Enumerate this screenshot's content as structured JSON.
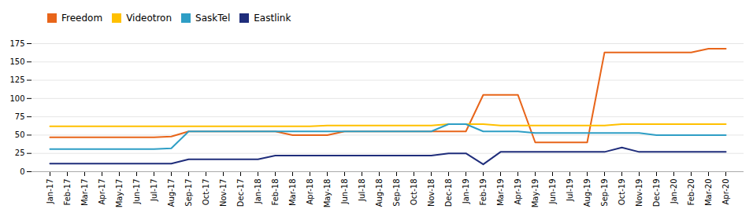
{
  "chart_data": {
    "type": "line",
    "categories": [
      "Jan-17",
      "Feb-17",
      "Mar-17",
      "Apr-17",
      "May-17",
      "Jun-17",
      "Jul-17",
      "Aug-17",
      "Sep-17",
      "Oct-17",
      "Nov-17",
      "Dec-17",
      "Jan-18",
      "Feb-18",
      "Mar-18",
      "Apr-18",
      "May-18",
      "Jun-18",
      "Jul-18",
      "Aug-18",
      "Sep-18",
      "Oct-18",
      "Nov-18",
      "Dec-18",
      "Jan-19",
      "Feb-19",
      "Mar-19",
      "Apr-19",
      "May-19",
      "Jun-19",
      "Jul-19",
      "Aug-19",
      "Sep-19",
      "Oct-19",
      "Nov-19",
      "Dec-19",
      "Jan-20",
      "Feb-20",
      "Mar-20",
      "Apr-20"
    ],
    "series": [
      {
        "name": "Freedom",
        "color": "#E8651A",
        "values": [
          47,
          47,
          47,
          47,
          47,
          47,
          47,
          48,
          55,
          55,
          55,
          55,
          55,
          55,
          50,
          50,
          50,
          55,
          55,
          55,
          55,
          55,
          55,
          55,
          55,
          105,
          105,
          105,
          40,
          40,
          40,
          40,
          163,
          163,
          163,
          163,
          163,
          163,
          168,
          168
        ]
      },
      {
        "name": "Videotron",
        "color": "#FFC000",
        "values": [
          62,
          62,
          62,
          62,
          62,
          62,
          62,
          62,
          62,
          62,
          62,
          62,
          62,
          62,
          62,
          62,
          63,
          63,
          63,
          63,
          63,
          63,
          63,
          65,
          65,
          65,
          63,
          63,
          63,
          63,
          63,
          63,
          63,
          65,
          65,
          65,
          65,
          65,
          65,
          65
        ]
      },
      {
        "name": "SaskTel",
        "color": "#2E9EC5",
        "values": [
          31,
          31,
          31,
          31,
          31,
          31,
          31,
          32,
          55,
          55,
          55,
          55,
          55,
          55,
          55,
          55,
          55,
          55,
          55,
          55,
          55,
          55,
          55,
          65,
          65,
          55,
          55,
          55,
          53,
          53,
          53,
          53,
          53,
          53,
          53,
          50,
          50,
          50,
          50,
          50
        ]
      },
      {
        "name": "Eastlink",
        "color": "#1F2D7B",
        "values": [
          11,
          11,
          11,
          11,
          11,
          11,
          11,
          11,
          17,
          17,
          17,
          17,
          17,
          22,
          22,
          22,
          22,
          22,
          22,
          22,
          22,
          22,
          22,
          25,
          25,
          10,
          27,
          27,
          27,
          27,
          27,
          27,
          27,
          33,
          27,
          27,
          27,
          27,
          27,
          27
        ]
      }
    ],
    "ylim": [
      0,
      175
    ],
    "yticks": [
      0,
      25,
      50,
      75,
      100,
      125,
      150,
      175
    ],
    "grid": true,
    "legend": "upper left"
  }
}
